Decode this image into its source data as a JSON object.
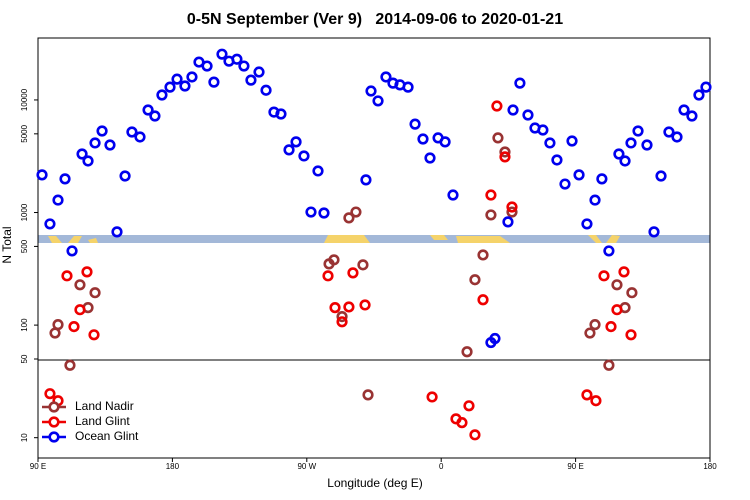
{
  "chart_data": {
    "type": "scatter",
    "title": "0-5N September (Ver 9)   2014-09-06 to 2020-01-21",
    "x_label": "Longitude (deg E)",
    "y_label": "N Total",
    "log_y": true,
    "legend": "lower left",
    "xlim": [
      90,
      540
    ],
    "xticks": [
      {
        "value": 90,
        "label": "90 E"
      },
      180,
      {
        "value": 270,
        "label": "90 W"
      },
      {
        "value": 360,
        "label": "0"
      },
      {
        "value": 450,
        "label": "90 E"
      },
      {
        "value": 540,
        "label": "180"
      }
    ],
    "ylim": [
      6.6,
      35500
    ],
    "yticks": [
      10,
      50,
      100,
      500,
      1000,
      5000,
      10000
    ],
    "series": [
      {
        "name": "Land Nadir",
        "color": "#993333",
        "x": [
          101.4,
          103.4,
          111.4,
          118.1,
          123.5,
          128.2,
          298.2,
          302.9,
          284.9,
          288.2,
          293.6,
          307.6,
          311.0,
          377.3,
          382.6,
          388.0,
          393.3,
          398.0,
          402.7,
          407.4,
          459.6,
          463.0,
          472.3,
          477.7,
          483.1,
          487.7
        ],
        "values": [
          85,
          101,
          44,
          228,
          143,
          194,
          896,
          1010,
          350,
          380,
          119,
          343,
          24,
          58,
          253,
          420,
          952,
          4600,
          3450,
          1010,
          85,
          101,
          44,
          228,
          143,
          194
        ]
      },
      {
        "name": "Land Glint",
        "color": "#ee0000",
        "x": [
          98.0,
          103.4,
          109.4,
          114.1,
          118.1,
          122.8,
          127.5,
          284.2,
          288.9,
          293.6,
          298.2,
          300.9,
          309.0,
          353.9,
          369.9,
          373.9,
          378.6,
          382.6,
          388.0,
          393.3,
          397.3,
          402.7,
          407.4,
          457.6,
          463.6,
          469.0,
          473.7,
          477.7,
          482.4,
          487.1
        ],
        "values": [
          24.6,
          21.3,
          274,
          97,
          137,
          297,
          82,
          274,
          143,
          107,
          145,
          291,
          151,
          23,
          14.7,
          13.6,
          19.2,
          10.6,
          168,
          1430,
          8830,
          3120,
          1120,
          24,
          21.3,
          274,
          97,
          137,
          297,
          82
        ]
      },
      {
        "name": "Ocean Glint",
        "color": "#0000ee",
        "x": [
          92.7,
          98.0,
          103.4,
          108.1,
          112.8,
          119.5,
          123.5,
          128.2,
          132.9,
          138.2,
          142.9,
          148.3,
          152.9,
          158.3,
          163.7,
          168.3,
          173.0,
          178.4,
          183.1,
          188.4,
          193.1,
          197.8,
          203.2,
          207.8,
          213.2,
          217.9,
          223.2,
          227.9,
          232.6,
          238.0,
          242.7,
          248.0,
          252.7,
          258.1,
          262.8,
          268.1,
          277.5,
          272.8,
          281.5,
          309.6,
          313.0,
          317.7,
          323.0,
          327.7,
          332.4,
          337.8,
          342.5,
          347.8,
          352.5,
          357.9,
          362.6,
          367.9,
          404.7,
          393.3,
          396.0,
          412.7,
          408.1,
          418.1,
          422.8,
          428.1,
          432.8,
          437.5,
          442.9,
          447.6,
          452.3,
          457.6,
          463.0,
          467.6,
          472.3,
          479.0,
          483.1,
          487.1,
          491.8,
          497.8,
          502.5,
          507.2,
          512.5,
          517.9,
          522.6,
          527.9,
          532.6,
          537.3
        ],
        "values": [
          2160,
          792,
          1290,
          1990,
          456,
          3310,
          2870,
          4150,
          5300,
          3980,
          673,
          2110,
          5190,
          4690,
          8140,
          7200,
          11060,
          13000,
          15300,
          13300,
          16000,
          21700,
          20000,
          14400,
          25500,
          22100,
          23000,
          20000,
          15000,
          17700,
          12200,
          7800,
          7500,
          3600,
          4240,
          3180,
          2340,
          1010,
          990,
          1950,
          12000,
          9800,
          16000,
          14100,
          13600,
          13000,
          6100,
          4500,
          3050,
          4600,
          4240,
          1430,
          826,
          70,
          76,
          14100,
          8140,
          7350,
          5630,
          5410,
          4150,
          2930,
          1790,
          4320,
          2160,
          792,
          1290,
          1990,
          456,
          3310,
          2870,
          4150,
          5300,
          3980,
          673,
          2110,
          5190,
          4690,
          8140,
          7200,
          11060,
          13000
        ]
      }
    ]
  }
}
